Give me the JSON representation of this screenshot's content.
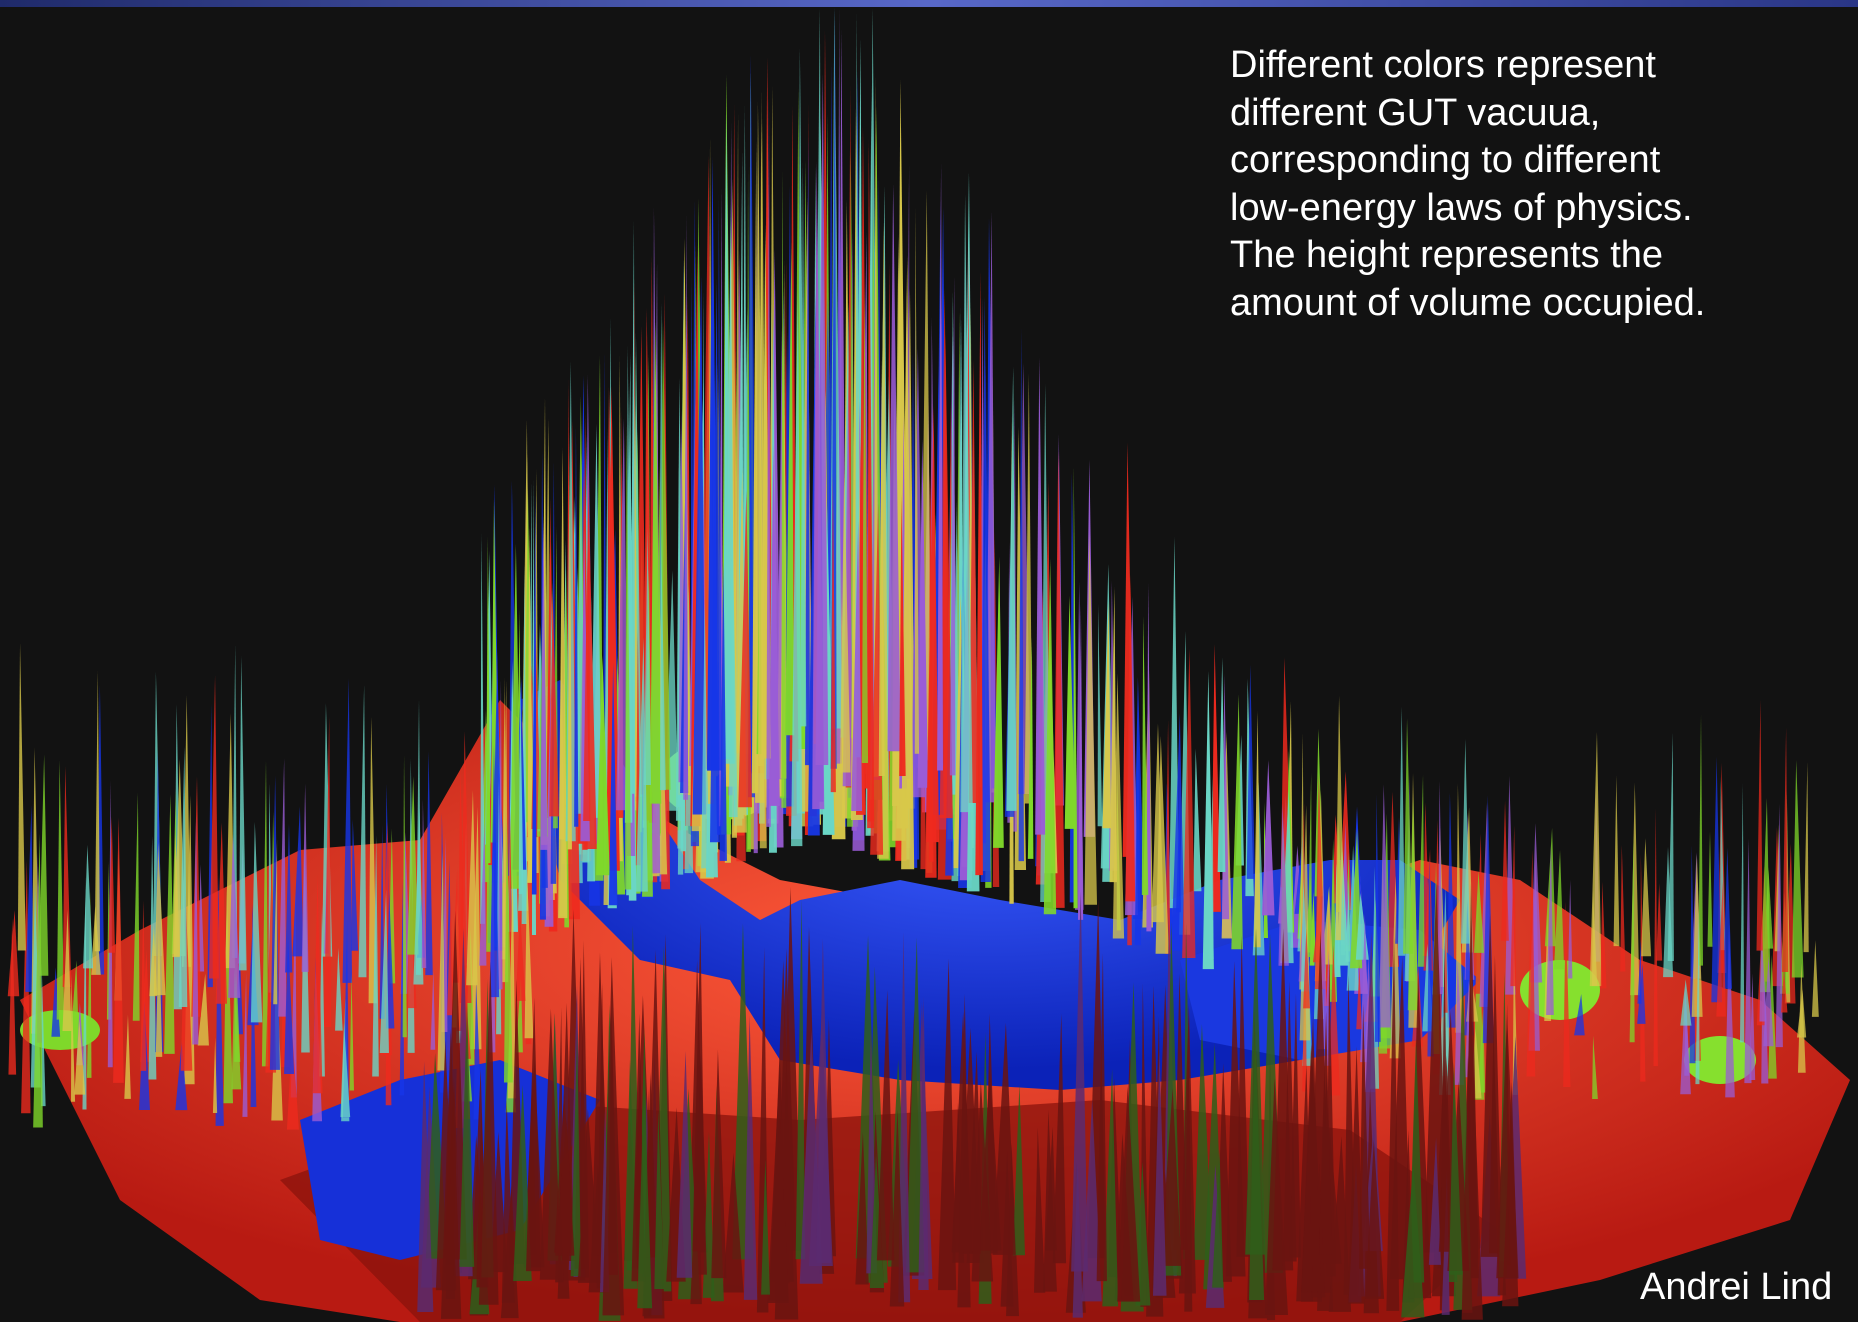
{
  "caption": {
    "text": "Different colors represent\ndifferent GUT vacuua,\ncorresponding to different\nlow-energy laws of physics.\nThe height represents the\namount of volume occupied."
  },
  "credit": {
    "text": "Andrei Lind"
  },
  "colors": {
    "background": "#121212",
    "vacuum_red": "#ee2a1e",
    "vacuum_blue": "#1636e8",
    "vacuum_green": "#7fd82a",
    "spike_violet": "#9a5cd6",
    "spike_cyan": "#6ad6c6",
    "spike_yellow": "#d8c84a",
    "text": "#ffffff"
  }
}
